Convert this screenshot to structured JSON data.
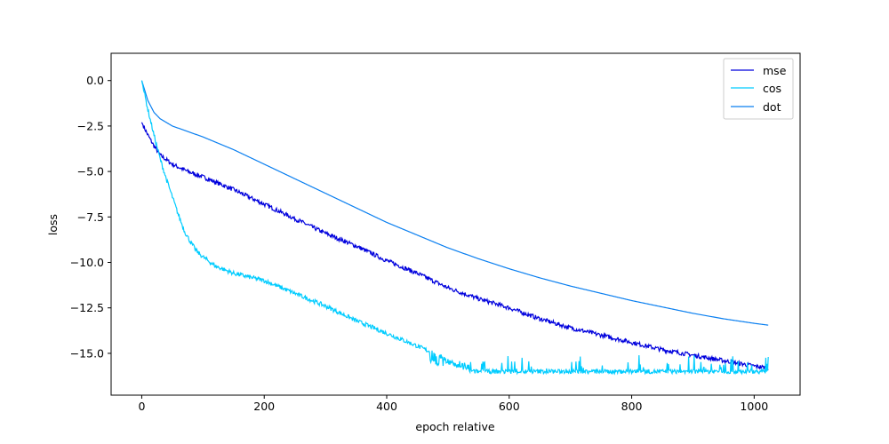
{
  "chart_data": {
    "type": "line",
    "title": "",
    "xlabel": "epoch relative",
    "ylabel": "loss",
    "xlim": [
      -50,
      1075
    ],
    "ylim": [
      -17.3,
      1.5
    ],
    "xticks": [
      0,
      200,
      400,
      600,
      800,
      1000
    ],
    "yticks": [
      0.0,
      -2.5,
      -5.0,
      -7.5,
      -10.0,
      -12.5,
      -15.0
    ],
    "xtick_labels": [
      "0",
      "200",
      "400",
      "600",
      "800",
      "1000"
    ],
    "ytick_labels": [
      "0.0",
      "−2.5",
      "−5.0",
      "−7.5",
      "−10.0",
      "−12.5",
      "−15.0"
    ],
    "grid": false,
    "legend_position": "top-right",
    "series": [
      {
        "name": "mse",
        "color": "#0000dd",
        "x": [
          0,
          10,
          20,
          30,
          50,
          75,
          100,
          150,
          200,
          250,
          300,
          350,
          400,
          450,
          500,
          550,
          600,
          650,
          700,
          750,
          800,
          850,
          900,
          950,
          1000,
          1023
        ],
        "y": [
          -2.3,
          -3.0,
          -3.6,
          -4.1,
          -4.6,
          -5.0,
          -5.3,
          -6.0,
          -6.8,
          -7.6,
          -8.4,
          -9.1,
          -9.9,
          -10.6,
          -11.4,
          -12.0,
          -12.5,
          -13.1,
          -13.6,
          -14.0,
          -14.4,
          -14.8,
          -15.1,
          -15.4,
          -15.7,
          -15.8
        ],
        "noise": 0.12
      },
      {
        "name": "cos",
        "color": "#00ccff",
        "x": [
          0,
          10,
          20,
          30,
          40,
          50,
          60,
          70,
          80,
          90,
          100,
          120,
          150,
          200,
          250,
          300,
          350,
          400,
          450,
          490,
          500,
          540,
          1023
        ],
        "y": [
          0,
          -1.6,
          -3.0,
          -4.3,
          -5.4,
          -6.4,
          -7.4,
          -8.3,
          -8.9,
          -9.4,
          -9.7,
          -10.2,
          -10.6,
          -11.0,
          -11.7,
          -12.4,
          -13.2,
          -13.9,
          -14.6,
          -15.2,
          -15.5,
          -16.0,
          -16.0
        ],
        "noise": 0.12
      },
      {
        "name": "dot",
        "color": "#0a7ff0",
        "x": [
          0,
          10,
          20,
          30,
          50,
          75,
          100,
          150,
          200,
          250,
          300,
          350,
          400,
          450,
          500,
          550,
          600,
          650,
          700,
          750,
          800,
          850,
          900,
          950,
          1000,
          1023
        ],
        "y": [
          0,
          -1.1,
          -1.75,
          -2.1,
          -2.5,
          -2.8,
          -3.1,
          -3.8,
          -4.6,
          -5.4,
          -6.2,
          -7.0,
          -7.8,
          -8.5,
          -9.2,
          -9.8,
          -10.35,
          -10.85,
          -11.3,
          -11.7,
          -12.1,
          -12.45,
          -12.8,
          -13.1,
          -13.35,
          -13.45
        ],
        "noise": 0
      }
    ]
  }
}
